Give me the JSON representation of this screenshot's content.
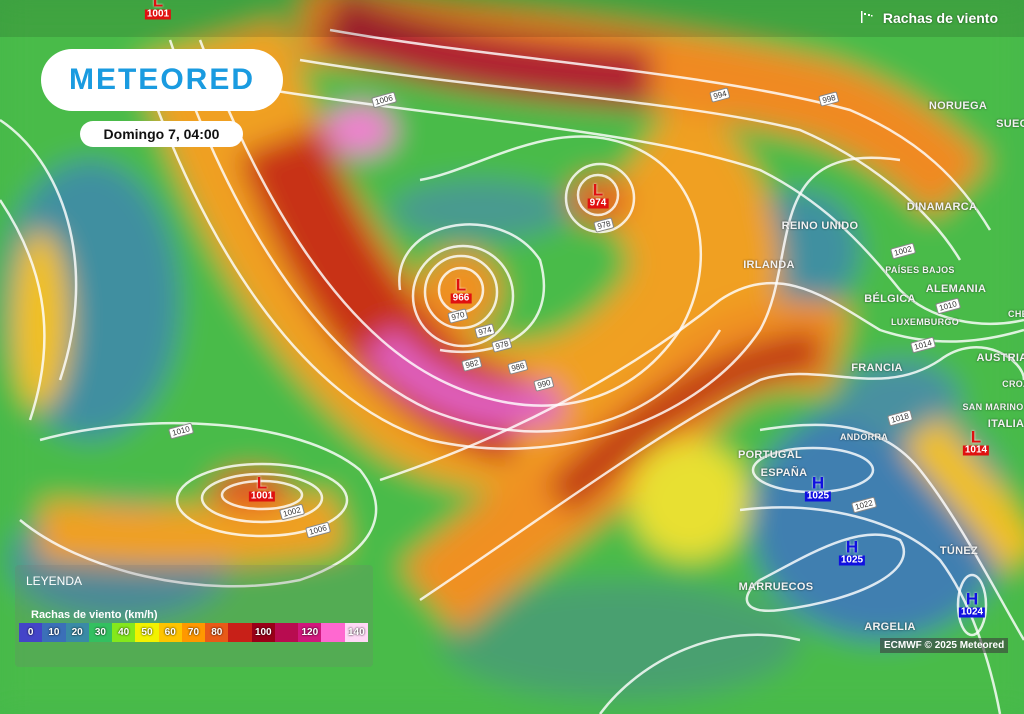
{
  "header": {
    "layer_icon": "wind-gust-flag-icon",
    "layer_title": "Rachas de viento"
  },
  "logo": {
    "text": "METEORED",
    "color": "#1a9be0"
  },
  "date": "Domingo 7, 04:00",
  "legend": {
    "title": "LEYENDA",
    "subtitle": "Rachas de viento (km/h)",
    "unit": "km/h",
    "stops": [
      {
        "label": "0",
        "color": "#4444c8"
      },
      {
        "label": "10",
        "color": "#3b6fb8"
      },
      {
        "label": "20",
        "color": "#3a8aa6"
      },
      {
        "label": "30",
        "color": "#33c060"
      },
      {
        "label": "40",
        "color": "#84e81c"
      },
      {
        "label": "50",
        "color": "#f2f200"
      },
      {
        "label": "60",
        "color": "#ffc400"
      },
      {
        "label": "70",
        "color": "#ff9800"
      },
      {
        "label": "80",
        "color": "#e85a18"
      },
      {
        "label": "",
        "color": "#c82018"
      },
      {
        "label": "100",
        "color": "#9a0018"
      },
      {
        "label": "",
        "color": "#b80c50"
      },
      {
        "label": "120",
        "color": "#d0187c"
      },
      {
        "label": "",
        "color": "#ff68d0"
      },
      {
        "label": "140",
        "color": "#ffd8f6"
      }
    ]
  },
  "countries": [
    "NORUEGA",
    "SUEC",
    "DINAMARCA",
    "REINO UNIDO",
    "IRLANDA",
    "PAÍSES BAJOS",
    "BÉLGICA",
    "ALEMANIA",
    "LUXEMBURGO",
    "CHE",
    "AUSTRIA",
    "CROA",
    "FRANCIA",
    "SAN MARINO",
    "ANDORRA",
    "ITALIA",
    "PORTUGAL",
    "ESPAÑA",
    "TÚNEZ",
    "MARRUECOS",
    "ARGELIA"
  ],
  "pressure_centers": [
    {
      "type": "L",
      "value": "1001",
      "color": "#e01010"
    },
    {
      "type": "L",
      "value": "974",
      "color": "#e01010"
    },
    {
      "type": "L",
      "value": "966",
      "color": "#e01010"
    },
    {
      "type": "L",
      "value": "1001",
      "color": "#e01010"
    },
    {
      "type": "L",
      "value": "1014",
      "color": "#e01010"
    },
    {
      "type": "H",
      "value": "1025",
      "color": "#1010e0"
    },
    {
      "type": "H",
      "value": "1025",
      "color": "#1010e0"
    },
    {
      "type": "H",
      "value": "1024",
      "color": "#1010e0"
    }
  ],
  "isobar_labels": [
    "1006",
    "994",
    "998",
    "1002",
    "1010",
    "1014",
    "1018",
    "1022",
    "970",
    "974",
    "978",
    "982",
    "986",
    "990",
    "978",
    "1010",
    "1002",
    "1006"
  ],
  "credit": "ECMWF © 2025 Meteored"
}
